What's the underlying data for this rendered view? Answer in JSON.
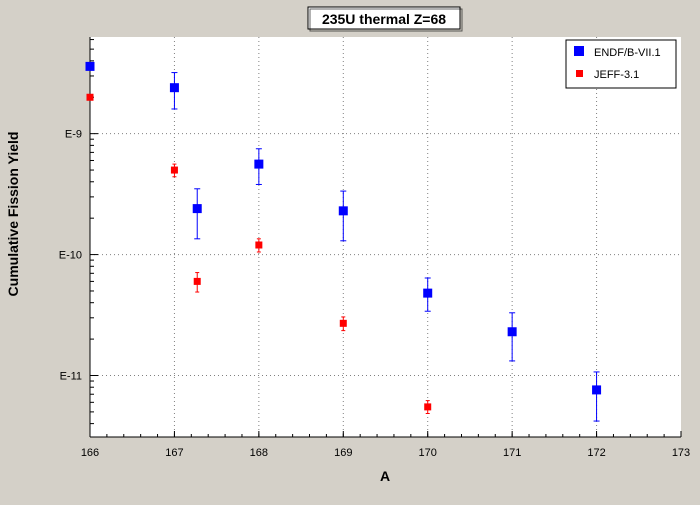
{
  "chart_data": {
    "type": "scatter",
    "title": "235U thermal Z=68",
    "xlabel": "A",
    "ylabel": "Cumulative Fission Yield",
    "xlim": [
      166,
      173
    ],
    "ylim": [
      3.1e-12,
      6.3e-09
    ],
    "yscale": "log",
    "x_ticks": [
      166,
      167,
      168,
      169,
      170,
      171,
      172,
      173
    ],
    "y_ticks": [
      {
        "value": 1e-09,
        "label": "E-9"
      },
      {
        "value": 1e-10,
        "label": "E-10"
      },
      {
        "value": 1e-11,
        "label": "E-11"
      }
    ],
    "grid": true,
    "legend_position": "top-right",
    "series": [
      {
        "name": "ENDF/B-VII.1",
        "color": "#0000ff",
        "marker": "square",
        "points": [
          {
            "x": 166,
            "y": 3.6e-09
          },
          {
            "x": 167,
            "y": 2.4e-09,
            "y_low": 1.6e-09,
            "y_high": 3.2e-09
          },
          {
            "x": 167.27,
            "y": 2.4e-10,
            "y_low": 1.35e-10,
            "y_high": 3.5e-10
          },
          {
            "x": 168,
            "y": 5.6e-10,
            "y_low": 3.8e-10,
            "y_high": 7.5e-10
          },
          {
            "x": 169,
            "y": 2.3e-10,
            "y_low": 1.3e-10,
            "y_high": 3.35e-10
          },
          {
            "x": 170,
            "y": 4.8e-11,
            "y_low": 3.4e-11,
            "y_high": 6.4e-11
          },
          {
            "x": 171,
            "y": 2.3e-11,
            "y_low": 1.32e-11,
            "y_high": 3.3e-11
          },
          {
            "x": 172,
            "y": 7.6e-12,
            "y_low": 4.2e-12,
            "y_high": 1.07e-11
          }
        ]
      },
      {
        "name": "JEFF-3.1",
        "color": "#ff0000",
        "marker": "square",
        "points": [
          {
            "x": 166,
            "y": 2e-09
          },
          {
            "x": 167,
            "y": 5e-10,
            "y_low": 4.4e-10,
            "y_high": 5.6e-10
          },
          {
            "x": 167.27,
            "y": 6e-11,
            "y_low": 4.9e-11,
            "y_high": 7.1e-11
          },
          {
            "x": 168,
            "y": 1.2e-10,
            "y_low": 1.05e-10,
            "y_high": 1.35e-10
          },
          {
            "x": 169,
            "y": 2.7e-11,
            "y_low": 2.35e-11,
            "y_high": 3.05e-11
          },
          {
            "x": 170,
            "y": 5.5e-12,
            "y_low": 4.85e-12,
            "y_high": 6.2e-12
          }
        ]
      }
    ]
  }
}
